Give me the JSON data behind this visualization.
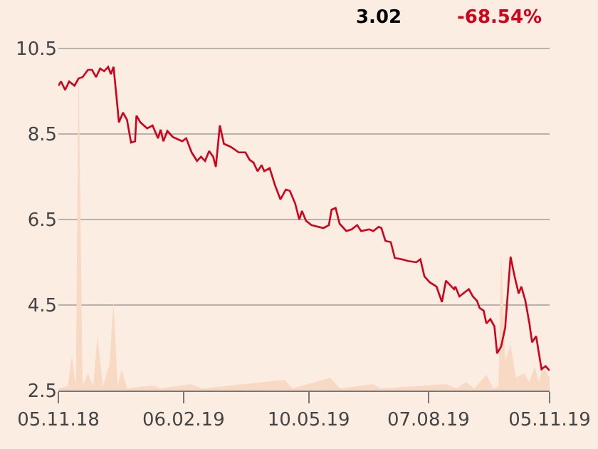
{
  "chart_data": {
    "type": "line",
    "annotations": [
      "3.02",
      "-68.54%"
    ],
    "xlim": [
      "2018-11-05",
      "2019-11-05"
    ],
    "xticks": [
      {
        "value": "2018-11-05",
        "label": "05.11.18"
      },
      {
        "value": "2019-02-06",
        "label": "06.02.19"
      },
      {
        "value": "2019-05-10",
        "label": "10.05.19"
      },
      {
        "value": "2019-08-07",
        "label": "07.08.19"
      },
      {
        "value": "2019-11-05",
        "label": "05.11.19"
      }
    ],
    "ylim": [
      2.5,
      10.5
    ],
    "yticks": [
      2.5,
      4.5,
      6.5,
      8.5,
      10.5
    ],
    "grid": "y",
    "legend": false,
    "series": [
      {
        "type": "area",
        "color": "#f8d9c4",
        "x": [
          "2018-11-05",
          "2018-11-12",
          "2018-11-15",
          "2018-11-18",
          "2018-11-20",
          "2018-11-23",
          "2018-11-27",
          "2018-12-01",
          "2018-12-04",
          "2018-12-08",
          "2018-12-13",
          "2018-12-16",
          "2018-12-19",
          "2018-12-22",
          "2018-12-26",
          "2019-01-14",
          "2019-01-20",
          "2019-02-11",
          "2019-02-20",
          "2019-04-22",
          "2019-04-28",
          "2019-05-26",
          "2019-06-02",
          "2019-06-27",
          "2019-07-02",
          "2019-08-20",
          "2019-08-28",
          "2019-09-04",
          "2019-09-10",
          "2019-09-19",
          "2019-09-24",
          "2019-09-28",
          "2019-09-30",
          "2019-10-03",
          "2019-10-07",
          "2019-10-11",
          "2019-10-17",
          "2019-10-21",
          "2019-10-25",
          "2019-10-28",
          "2019-10-31",
          "2019-11-05"
        ],
        "values": [
          2.55,
          2.6,
          3.3,
          2.6,
          10.2,
          2.6,
          2.9,
          2.6,
          3.8,
          2.6,
          3.1,
          4.6,
          2.6,
          3.0,
          2.55,
          2.62,
          2.55,
          2.65,
          2.55,
          2.75,
          2.55,
          2.8,
          2.55,
          2.65,
          2.55,
          2.65,
          2.55,
          2.7,
          2.55,
          2.87,
          2.55,
          2.6,
          5.7,
          3.2,
          3.57,
          2.8,
          2.9,
          2.7,
          3.07,
          2.7,
          3.07,
          2.8
        ]
      },
      {
        "type": "line",
        "color": "#d0021b",
        "x": [
          "2018-11-05",
          "2018-11-07",
          "2018-11-10",
          "2018-11-13",
          "2018-11-17",
          "2018-11-20",
          "2018-11-23",
          "2018-11-27",
          "2018-11-30",
          "2018-12-03",
          "2018-12-06",
          "2018-12-09",
          "2018-12-12",
          "2018-12-14",
          "2018-12-16",
          "2018-12-18",
          "2018-12-20",
          "2018-12-23",
          "2018-12-26",
          "2018-12-29",
          "2019-01-01",
          "2019-01-02",
          "2019-01-05",
          "2019-01-10",
          "2019-01-14",
          "2019-01-18",
          "2019-01-20",
          "2019-01-22",
          "2019-01-25",
          "2019-01-29",
          "2019-02-05",
          "2019-02-08",
          "2019-02-12",
          "2019-02-16",
          "2019-02-19",
          "2019-02-22",
          "2019-02-25",
          "2019-02-28",
          "2019-03-02",
          "2019-03-05",
          "2019-03-08",
          "2019-03-13",
          "2019-03-19",
          "2019-03-24",
          "2019-03-27",
          "2019-03-30",
          "2019-04-02",
          "2019-04-05",
          "2019-04-07",
          "2019-04-11",
          "2019-04-15",
          "2019-04-19",
          "2019-04-23",
          "2019-04-26",
          "2019-04-30",
          "2019-05-03",
          "2019-05-05",
          "2019-05-08",
          "2019-05-12",
          "2019-05-17",
          "2019-05-21",
          "2019-05-25",
          "2019-05-27",
          "2019-05-30",
          "2019-06-02",
          "2019-06-07",
          "2019-06-11",
          "2019-06-15",
          "2019-06-18",
          "2019-06-24",
          "2019-06-27",
          "2019-07-01",
          "2019-07-03",
          "2019-07-06",
          "2019-07-10",
          "2019-07-13",
          "2019-07-18",
          "2019-07-23",
          "2019-07-29",
          "2019-08-01",
          "2019-08-04",
          "2019-08-08",
          "2019-08-13",
          "2019-08-17",
          "2019-08-20",
          "2019-08-23",
          "2019-08-26",
          "2019-08-27",
          "2019-08-30",
          "2019-09-03",
          "2019-09-06",
          "2019-09-09",
          "2019-09-12",
          "2019-09-14",
          "2019-09-17",
          "2019-09-19",
          "2019-09-22",
          "2019-09-25",
          "2019-09-27",
          "2019-09-30",
          "2019-10-03",
          "2019-10-07",
          "2019-10-10",
          "2019-10-13",
          "2019-10-15",
          "2019-10-18",
          "2019-10-21",
          "2019-10-23",
          "2019-10-26",
          "2019-10-30",
          "2019-11-02",
          "2019-11-05"
        ],
        "values": [
          9.63,
          9.73,
          9.53,
          9.73,
          9.63,
          9.8,
          9.83,
          10.0,
          10.0,
          9.83,
          10.03,
          9.97,
          10.07,
          9.9,
          10.07,
          9.43,
          8.77,
          9.0,
          8.83,
          8.3,
          8.33,
          8.93,
          8.77,
          8.63,
          8.7,
          8.4,
          8.6,
          8.33,
          8.57,
          8.43,
          8.33,
          8.4,
          8.07,
          7.87,
          7.97,
          7.87,
          8.1,
          7.97,
          7.73,
          8.7,
          8.27,
          8.2,
          8.07,
          8.07,
          7.9,
          7.83,
          7.63,
          7.77,
          7.63,
          7.7,
          7.3,
          6.97,
          7.2,
          7.17,
          6.87,
          6.5,
          6.7,
          6.47,
          6.37,
          6.33,
          6.3,
          6.37,
          6.73,
          6.77,
          6.4,
          6.23,
          6.27,
          6.37,
          6.23,
          6.27,
          6.23,
          6.33,
          6.3,
          6.0,
          5.97,
          5.6,
          5.57,
          5.53,
          5.5,
          5.57,
          5.17,
          5.03,
          4.93,
          4.57,
          5.07,
          4.97,
          4.87,
          4.93,
          4.7,
          4.8,
          4.87,
          4.7,
          4.6,
          4.43,
          4.37,
          4.07,
          4.17,
          4.0,
          3.37,
          3.53,
          3.97,
          5.63,
          5.17,
          4.77,
          4.93,
          4.6,
          4.07,
          3.63,
          3.77,
          3.0,
          3.07,
          2.97
        ]
      }
    ]
  }
}
